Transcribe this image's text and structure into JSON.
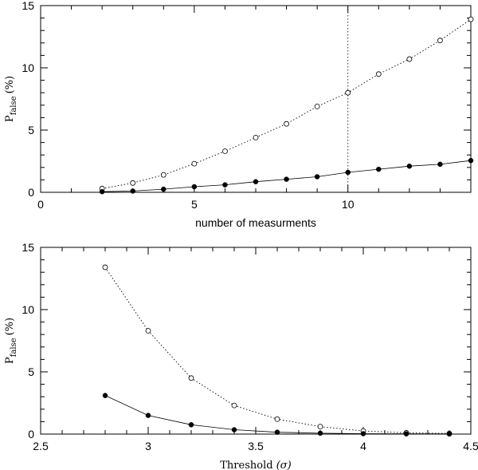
{
  "chart_data": [
    {
      "type": "line",
      "xlabel": "number of measurments",
      "ylabel": {
        "main": "P",
        "subscript": "false",
        "unit": "(%)"
      },
      "xlim": [
        0,
        14
      ],
      "ylim": [
        0,
        15
      ],
      "xticks": [
        0,
        5,
        10
      ],
      "yticks": [
        0,
        5,
        10,
        15
      ],
      "vline": 10,
      "series": [
        {
          "marker": "open-circle",
          "line": "dotted",
          "x": [
            2,
            3,
            4,
            5,
            6,
            7,
            8,
            9,
            10,
            11,
            12,
            13,
            14
          ],
          "y": [
            0.3,
            0.75,
            1.4,
            2.3,
            3.3,
            4.4,
            5.5,
            6.9,
            8.0,
            9.5,
            10.7,
            12.2,
            13.9
          ]
        },
        {
          "marker": "filled-circle",
          "line": "solid",
          "x": [
            2,
            3,
            4,
            5,
            6,
            7,
            8,
            9,
            10,
            11,
            12,
            13,
            14
          ],
          "y": [
            0.05,
            0.1,
            0.25,
            0.45,
            0.6,
            0.85,
            1.05,
            1.25,
            1.6,
            1.85,
            2.1,
            2.25,
            2.55
          ]
        }
      ]
    },
    {
      "type": "line",
      "xlabel": {
        "main": "Threshold",
        "symbol": "(σ)"
      },
      "ylabel": {
        "main": "P",
        "subscript": "false",
        "unit": "(%)"
      },
      "xlim": [
        2.5,
        4.5
      ],
      "ylim": [
        0,
        15
      ],
      "xticks": [
        2.5,
        3,
        3.5,
        4,
        4.5
      ],
      "yticks": [
        0,
        5,
        10,
        15
      ],
      "series": [
        {
          "marker": "open-circle",
          "line": "dotted",
          "x": [
            2.8,
            3.0,
            3.2,
            3.4,
            3.6,
            3.8,
            4.0,
            4.2,
            4.4
          ],
          "y": [
            13.4,
            8.3,
            4.5,
            2.3,
            1.2,
            0.6,
            0.25,
            0.1,
            0.05
          ]
        },
        {
          "marker": "filled-circle",
          "line": "solid",
          "x": [
            2.8,
            3.0,
            3.2,
            3.4,
            3.6,
            3.8,
            4.0,
            4.2,
            4.4
          ],
          "y": [
            3.1,
            1.5,
            0.75,
            0.35,
            0.15,
            0.07,
            0.03,
            0.02,
            0.01
          ]
        }
      ]
    }
  ]
}
